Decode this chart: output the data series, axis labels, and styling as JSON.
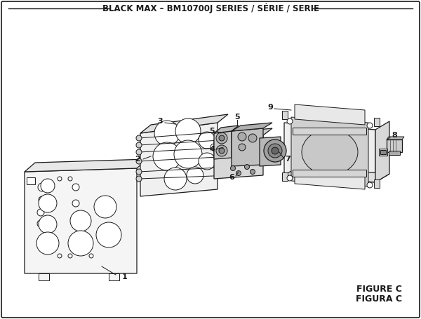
{
  "title": "BLACK MAX – BM10700J SERIES / SÉRIE / SERIE",
  "figure_label": "FIGURE C",
  "figura_label": "FIGURA C",
  "bg_color": "#ffffff",
  "lc": "#1a1a1a",
  "tc": "#1a1a1a",
  "title_fontsize": 8.5,
  "label_fontsize": 8,
  "figsize": [
    6.0,
    4.55
  ],
  "dpi": 100
}
